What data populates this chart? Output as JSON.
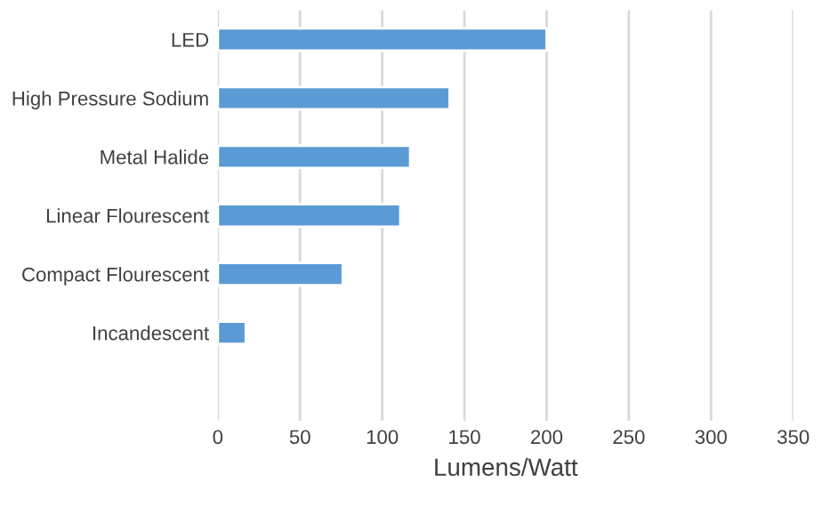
{
  "chart_data": {
    "type": "bar",
    "orientation": "horizontal",
    "xlabel": "Lumens/Watt",
    "categories": [
      "LED",
      "High Pressure Sodium",
      "Metal Halide",
      "Linear Flourescent",
      "Compact Flourescent",
      "Incandescent",
      null
    ],
    "values": [
      200,
      141,
      117,
      111,
      76,
      17,
      null
    ],
    "color": "#5b9bd5",
    "xlim": [
      0,
      350
    ],
    "xticks": [
      0,
      50,
      100,
      150,
      200,
      250,
      300,
      350
    ],
    "grid": "x"
  }
}
